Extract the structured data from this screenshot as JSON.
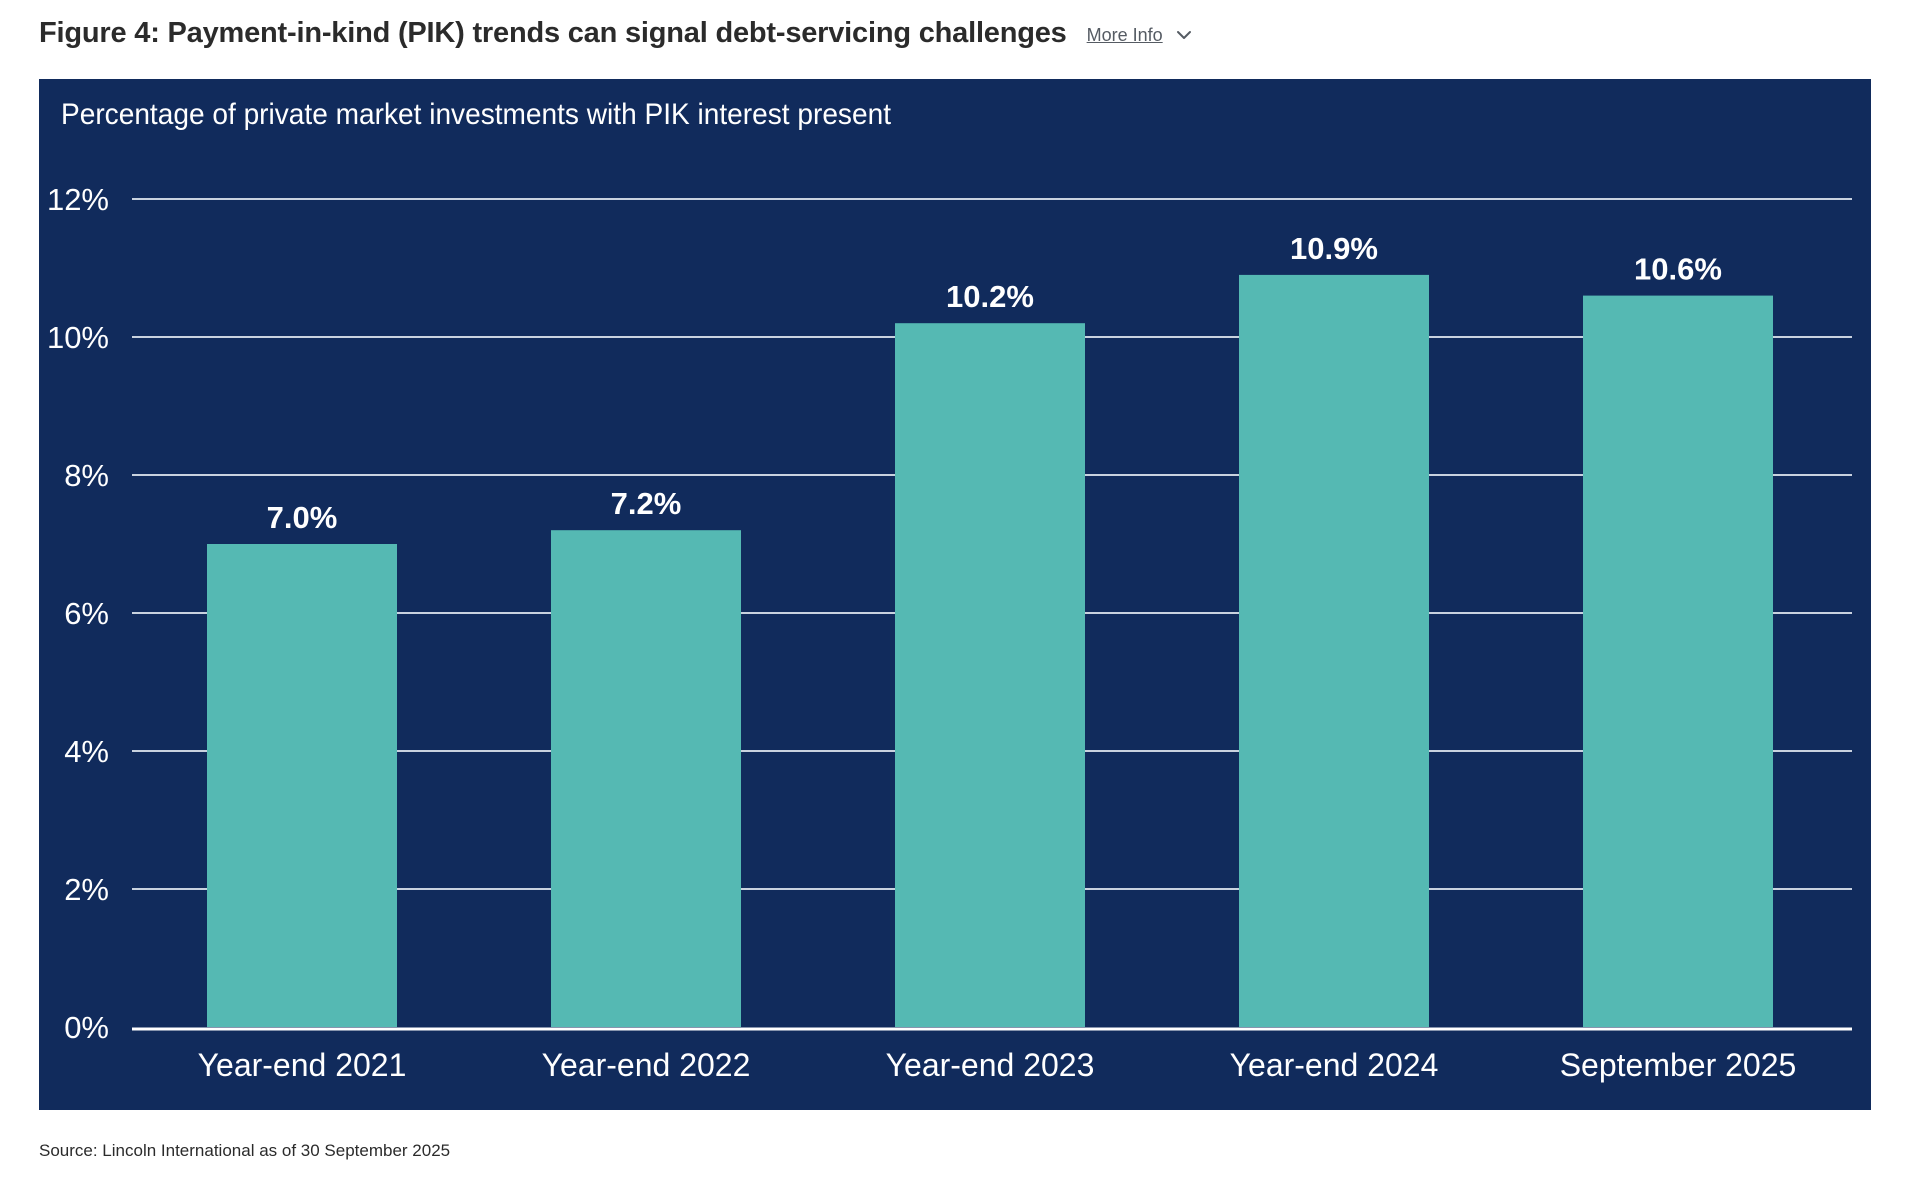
{
  "header": {
    "title": "Figure 4: Payment-in-kind (PIK) trends can signal debt-servicing challenges",
    "more_info_label": "More Info",
    "more_info_icon": "chevron-down-icon"
  },
  "source": "Source: Lincoln International as of 30 September 2025",
  "colors": {
    "panel_bg": "#112b5c",
    "bar": "#55b9b3",
    "text": "#ffffff",
    "grid": "#c9d2df"
  },
  "chart_data": {
    "type": "bar",
    "title": "Percentage of private market investments with PIK interest present",
    "categories": [
      "Year-end 2021",
      "Year-end 2022",
      "Year-end 2023",
      "Year-end 2024",
      "September 2025"
    ],
    "values": [
      7.0,
      7.2,
      10.2,
      10.9,
      10.6
    ],
    "data_labels": [
      "7.0%",
      "7.2%",
      "10.2%",
      "10.9%",
      "10.6%"
    ],
    "yticks": [
      0,
      2,
      4,
      6,
      8,
      10,
      12
    ],
    "ytick_labels": [
      "0%",
      "2%",
      "4%",
      "6%",
      "8%",
      "10%",
      "12%"
    ],
    "ylim": [
      0,
      12
    ],
    "xlabel": "",
    "ylabel": "",
    "grid": true,
    "legend": "none"
  }
}
